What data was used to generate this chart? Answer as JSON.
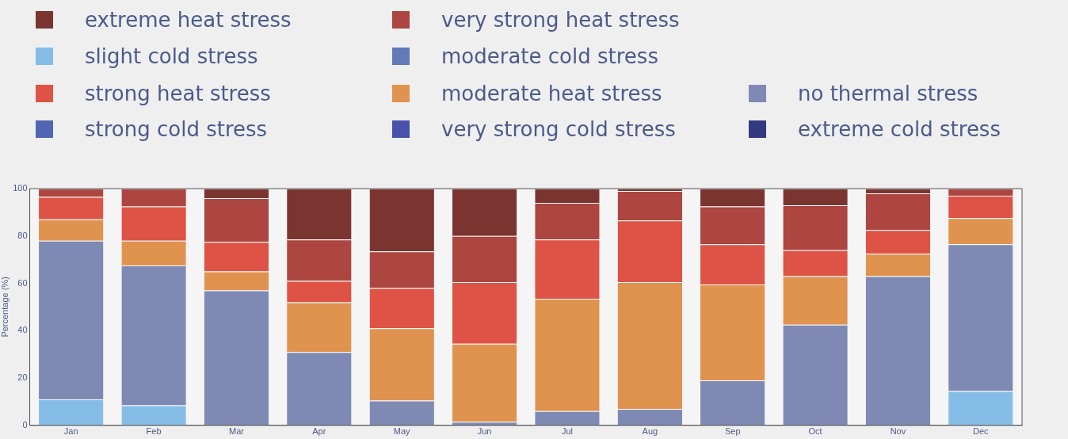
{
  "chart_data": {
    "type": "bar",
    "stacked": true,
    "ylabel": "Percentage (%)",
    "legend": "top",
    "categories": [
      "Jan",
      "Feb",
      "Mar",
      "Apr",
      "May",
      "Jun",
      "Jul",
      "Aug",
      "Sep",
      "Oct",
      "Nov",
      "Dec"
    ],
    "ylim": [
      0,
      100
    ],
    "yticks": [
      0,
      20,
      40,
      60,
      80,
      100
    ],
    "grid": false,
    "series": [
      {
        "name": "slight cold stress",
        "color": "#86bde6",
        "values": [
          11,
          8.5,
          0,
          0,
          0,
          0,
          0,
          0,
          0,
          0,
          0,
          14.5
        ]
      },
      {
        "name": "moderate cold stress",
        "color": "#6479b8",
        "values": [
          0,
          0,
          0,
          0,
          0,
          0,
          0,
          0,
          0,
          0,
          0,
          0
        ]
      },
      {
        "name": "strong cold stress",
        "color": "#5166b3",
        "values": [
          0,
          0,
          0,
          0,
          0,
          0,
          0,
          0,
          0,
          0,
          0,
          0
        ]
      },
      {
        "name": "very strong cold stress",
        "color": "#4852ab",
        "values": [
          0,
          0,
          0,
          0,
          0,
          0,
          0,
          0,
          0,
          0,
          0,
          0
        ]
      },
      {
        "name": "extreme cold stress",
        "color": "#343a82",
        "values": [
          0,
          0,
          0,
          0,
          0,
          0,
          0,
          0,
          0,
          0,
          0,
          0
        ]
      },
      {
        "name": "no thermal stress",
        "color": "#7f8ab4",
        "values": [
          67,
          59,
          57,
          31,
          10.5,
          1.5,
          6,
          7,
          19,
          42.5,
          63,
          62
        ]
      },
      {
        "name": "moderate heat stress",
        "color": "#e0934f",
        "values": [
          9,
          10.5,
          8,
          21,
          30.5,
          33,
          47.5,
          53.5,
          40.5,
          20.5,
          9.5,
          11
        ]
      },
      {
        "name": "strong heat stress",
        "color": "#de5345",
        "values": [
          9.5,
          14.5,
          12.5,
          9,
          17,
          26,
          25,
          26,
          17,
          11,
          10,
          9.5
        ]
      },
      {
        "name": "very strong heat stress",
        "color": "#ad4540",
        "values": [
          3.5,
          7.5,
          18.5,
          17.5,
          15.5,
          19.5,
          15.5,
          12.5,
          16,
          19,
          15.5,
          3
        ]
      },
      {
        "name": "extreme heat stress",
        "color": "#7b3530",
        "values": [
          0,
          0,
          4,
          21.5,
          26.5,
          20,
          6,
          1,
          7.5,
          7,
          2,
          0
        ]
      }
    ]
  }
}
